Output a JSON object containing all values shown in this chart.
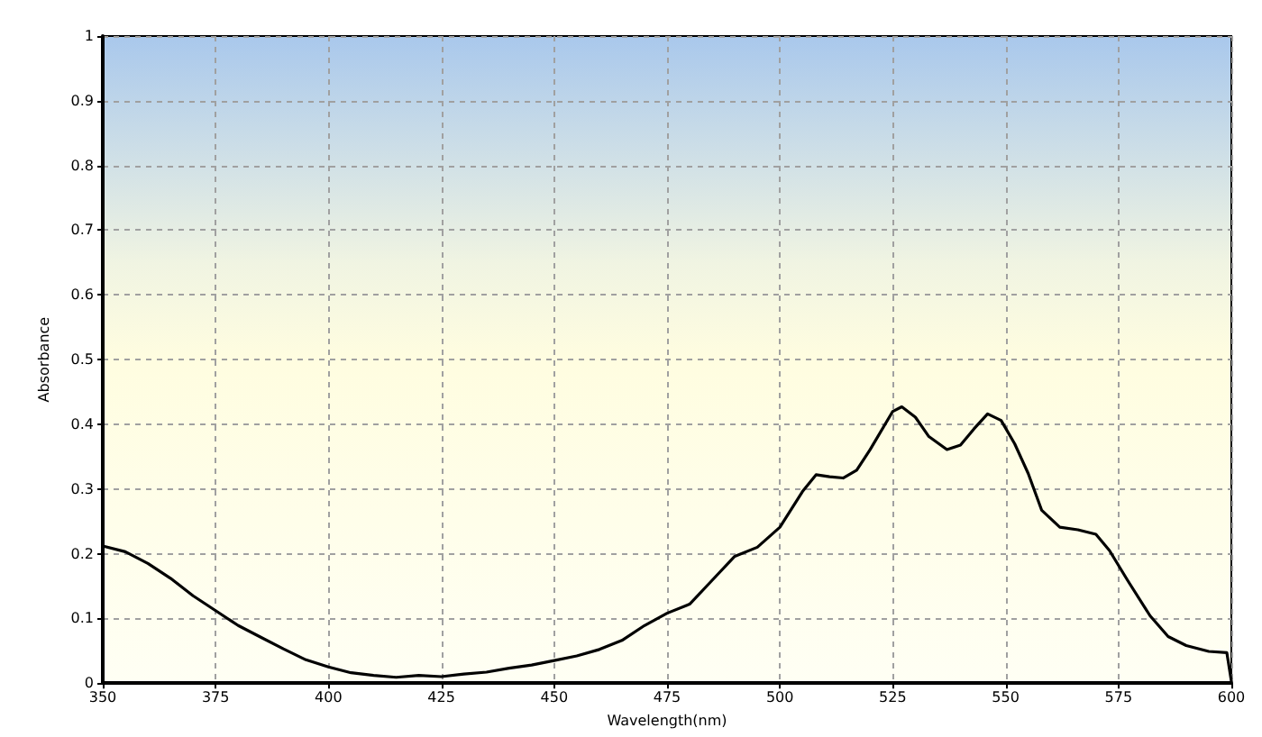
{
  "chart_data": {
    "type": "line",
    "xlabel": "Wavelength(nm)",
    "ylabel": "Absorbance",
    "xlim": [
      350,
      600
    ],
    "xticks": [
      350,
      375,
      400,
      425,
      450,
      475,
      500,
      525,
      550,
      575,
      600
    ],
    "ylim": [
      0,
      1
    ],
    "yticks": [
      0,
      0.1,
      0.2,
      0.3,
      0.4,
      0.5,
      0.6,
      0.7,
      0.8,
      0.9,
      1
    ],
    "grid": true,
    "marker": "none",
    "line_style": "solid",
    "series": [
      {
        "color": "#000000",
        "x": [
          350,
          355,
          360,
          365,
          370,
          375,
          380,
          385,
          390,
          395,
          400,
          405,
          410,
          415,
          420,
          425,
          430,
          435,
          440,
          445,
          450,
          455,
          460,
          465,
          470,
          475,
          480,
          485,
          490,
          495,
          500,
          505,
          508,
          511,
          514,
          517,
          520,
          525,
          527,
          530,
          533,
          537,
          540,
          543,
          546,
          549,
          552,
          555,
          558,
          562,
          566,
          570,
          573,
          577,
          582,
          586,
          590,
          595,
          599,
          600
        ],
        "values": [
          0.212,
          0.203,
          0.185,
          0.162,
          0.135,
          0.112,
          0.089,
          0.071,
          0.053,
          0.036,
          0.025,
          0.016,
          0.012,
          0.009,
          0.012,
          0.01,
          0.014,
          0.017,
          0.023,
          0.028,
          0.035,
          0.042,
          0.052,
          0.066,
          0.089,
          0.108,
          0.122,
          0.159,
          0.196,
          0.21,
          0.241,
          0.296,
          0.322,
          0.319,
          0.317,
          0.329,
          0.361,
          0.42,
          0.427,
          0.411,
          0.381,
          0.361,
          0.368,
          0.393,
          0.416,
          0.406,
          0.37,
          0.324,
          0.267,
          0.241,
          0.237,
          0.23,
          0.205,
          0.159,
          0.104,
          0.072,
          0.058,
          0.049,
          0.047,
          0.003
        ]
      }
    ]
  }
}
